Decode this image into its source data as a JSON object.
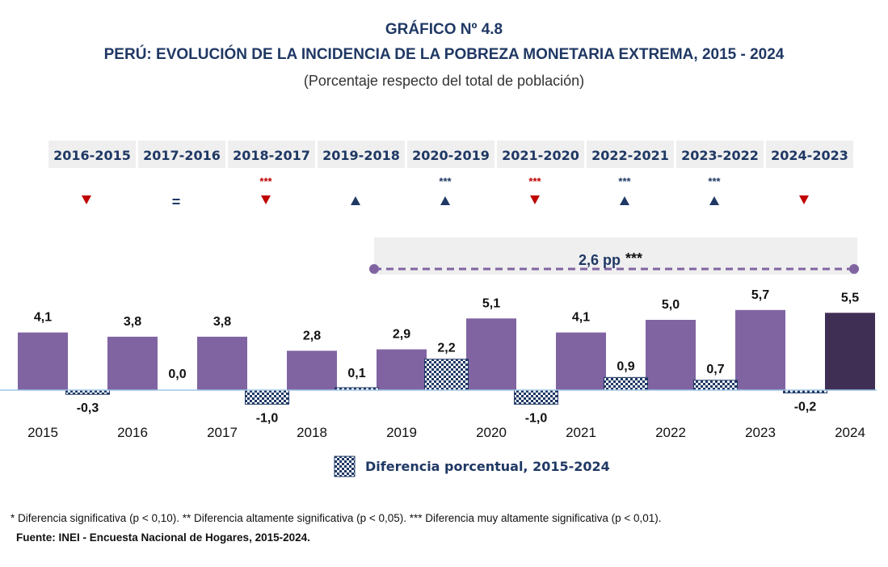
{
  "header": {
    "title1": "GRÁFICO Nº 4.8",
    "title2": "PERÚ: EVOLUCIÓN DE LA INCIDENCIA DE LA POBREZA MONETARIA EXTREMA, 2015 - 2024",
    "subtitle": "(Porcentaje respecto del total de población)"
  },
  "chart_data": {
    "type": "bar",
    "categories": [
      "2015",
      "2016",
      "2017",
      "2018",
      "2019",
      "2020",
      "2021",
      "2022",
      "2023",
      "2024"
    ],
    "values": [
      4.1,
      3.8,
      3.8,
      2.8,
      2.9,
      5.1,
      4.1,
      5.0,
      5.7,
      5.5
    ],
    "value_labels": [
      "4,1",
      "3,8",
      "3,8",
      "2,8",
      "2,9",
      "5,1",
      "4,1",
      "5,0",
      "5,7",
      "5,5"
    ],
    "differences": {
      "periods": [
        "2016-2015",
        "2017-2016",
        "2018-2017",
        "2019-2018",
        "2020-2019",
        "2021-2020",
        "2022-2021",
        "2023-2022",
        "2024-2023"
      ],
      "values": [
        -0.3,
        0.0,
        -1.0,
        0.1,
        2.2,
        -1.0,
        0.9,
        0.7,
        -0.2
      ],
      "labels": [
        "-0,3",
        "0,0",
        "-1,0",
        "0,1",
        "2,2",
        "-1,0",
        "0,9",
        "0,7",
        "-0,2"
      ],
      "trend": [
        "down",
        "equal",
        "down",
        "up",
        "up",
        "down",
        "up",
        "up",
        "down"
      ],
      "significance": [
        "",
        "",
        "***",
        "",
        "***",
        "***",
        "***",
        "***",
        ""
      ]
    },
    "legend": {
      "label": "Diferencia porcentual, 2015-2024",
      "placement": "bottom"
    },
    "bracket": {
      "label": "2,6 pp",
      "stars": "***",
      "from": "2019",
      "to": "2024"
    },
    "grid": false,
    "colors": {
      "bar": "#8064a2",
      "bar_last": "#3f2f55",
      "diff": "#1f3864",
      "up": "#1f3864",
      "down": "#c00000",
      "bracket": "#8064a2",
      "axis": "#9dc3e6",
      "header_box": "#efefef"
    }
  },
  "footer": {
    "note": "* Diferencia significativa (p < 0,10). ** Diferencia altamente significativa (p < 0,05). *** Diferencia muy altamente significativa (p < 0,01).",
    "source": "Fuente: INEI - Encuesta Nacional de Hogares, 2015-2024."
  }
}
